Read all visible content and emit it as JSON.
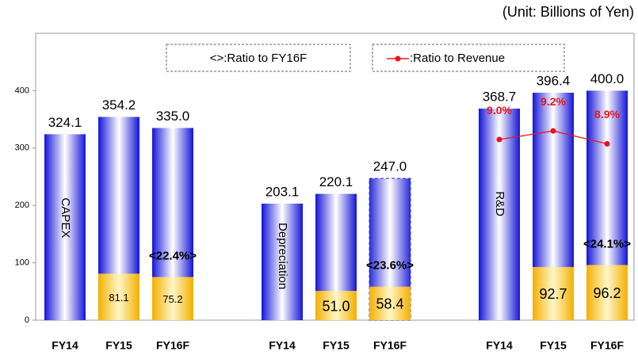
{
  "chart_data": {
    "type": "bar",
    "unit": "(Unit: Billions of Yen)",
    "legend": [
      "<>:Ratio to FY16F",
      ":Ratio to Revenue"
    ],
    "ylim": [
      0,
      500
    ],
    "yticks": [
      0,
      100,
      200,
      300,
      400
    ],
    "y2lim": [
      4.8,
      11.47
    ],
    "colors": {
      "total": "#2a2ae6",
      "portion": "#f3b600",
      "line": "#e8141e"
    },
    "groups": [
      {
        "name": "CAPEX",
        "categories": [
          "FY14",
          "FY15",
          "FY16F"
        ],
        "totals": [
          324.1,
          354.2,
          335.0
        ],
        "total_labels": [
          "324.1",
          "354.2",
          "335.0"
        ],
        "portions": [
          null,
          81.1,
          75.2
        ],
        "portion_labels": [
          null,
          "81.1",
          "75.2"
        ],
        "ratio": 22.4,
        "ratio_label": "<22.4%>"
      },
      {
        "name": "Depreciation",
        "categories": [
          "FY14",
          "FY15",
          "FY16F"
        ],
        "totals": [
          203.1,
          220.1,
          247.0
        ],
        "total_labels": [
          "203.1",
          "220.1",
          "247.0"
        ],
        "portions": [
          null,
          51.0,
          58.4
        ],
        "portion_labels": [
          null,
          "51.0",
          "58.4"
        ],
        "ratio": 23.6,
        "ratio_label": "<23.6%>",
        "dashed": [
          false,
          false,
          true
        ]
      },
      {
        "name": "R&D",
        "categories": [
          "FY14",
          "FY15",
          "FY16F"
        ],
        "totals": [
          368.7,
          396.4,
          400.0
        ],
        "total_labels": [
          "368.7",
          "396.4",
          "400.0"
        ],
        "portions": [
          null,
          92.7,
          96.2
        ],
        "portion_labels": [
          null,
          "92.7",
          "96.2"
        ],
        "ratio": 24.1,
        "ratio_label": "<24.1%>",
        "revenue_ratio": {
          "values": [
            9.0,
            9.2,
            8.9
          ],
          "value_labels": [
            "9.0%",
            "9.2%",
            "8.9%"
          ]
        }
      }
    ]
  }
}
